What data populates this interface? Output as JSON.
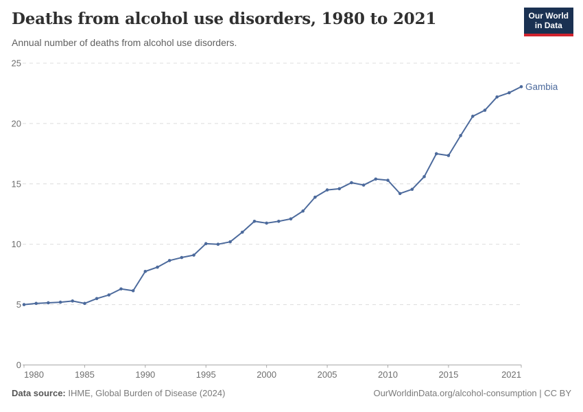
{
  "header": {
    "title": "Deaths from alcohol use disorders, 1980 to 2021",
    "subtitle": "Annual number of deaths from alcohol use disorders.",
    "logo_line1": "Our World",
    "logo_line2": "in Data"
  },
  "footer": {
    "source_label": "Data source:",
    "source_text": " IHME, Global Burden of Disease (2024)",
    "credit": "OurWorldinData.org/alcohol-consumption | CC BY"
  },
  "theme": {
    "line_color": "#4C6A9C",
    "grid_color": "#DCDCDC",
    "axis_color": "#A8A8A8",
    "tick_text_color": "#6E6E6E",
    "title_color": "#303030",
    "subtitle_color": "#5F5F5F",
    "footer_color": "#7A7A7A",
    "logo_bg": "#1A3152",
    "logo_bar": "#D0232E"
  },
  "chart_data": {
    "type": "line",
    "title": "Deaths from alcohol use disorders, 1980 to 2021",
    "xlabel": "",
    "ylabel": "",
    "ylim": [
      0,
      25
    ],
    "grid": "horizontal-dashed",
    "legend_position": "entity-label-right-of-line",
    "yticks": [
      0,
      5,
      10,
      15,
      20,
      25
    ],
    "xticks": [
      1980,
      1985,
      1990,
      1995,
      2000,
      2005,
      2010,
      2015,
      2021
    ],
    "x": [
      1980,
      1981,
      1982,
      1983,
      1984,
      1985,
      1986,
      1987,
      1988,
      1989,
      1990,
      1991,
      1992,
      1993,
      1994,
      1995,
      1996,
      1997,
      1998,
      1999,
      2000,
      2001,
      2002,
      2003,
      2004,
      2005,
      2006,
      2007,
      2008,
      2009,
      2010,
      2011,
      2012,
      2013,
      2014,
      2015,
      2016,
      2017,
      2018,
      2019,
      2020,
      2021
    ],
    "series": [
      {
        "name": "Gambia",
        "values": [
          5.0,
          5.1,
          5.15,
          5.2,
          5.3,
          5.1,
          5.5,
          5.8,
          6.3,
          6.15,
          7.75,
          8.1,
          8.65,
          8.9,
          9.1,
          10.05,
          10.0,
          10.2,
          11.0,
          11.9,
          11.75,
          11.9,
          12.1,
          12.75,
          13.9,
          14.5,
          14.6,
          15.1,
          14.9,
          15.4,
          15.3,
          14.2,
          14.55,
          15.6,
          17.5,
          17.35,
          19.0,
          20.6,
          21.1,
          22.2,
          22.55,
          23.05
        ]
      }
    ]
  }
}
